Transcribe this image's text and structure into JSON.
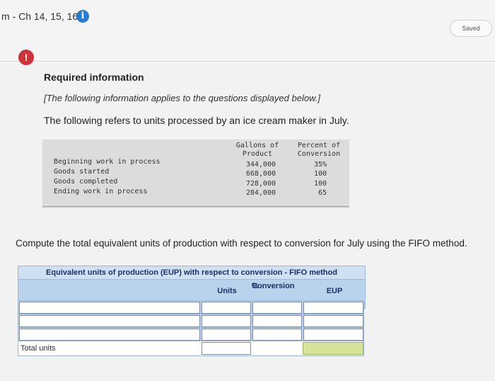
{
  "header": {
    "crumb": "m - Ch 14, 15, 16",
    "info_glyph": "i",
    "saved_label": "Saved"
  },
  "alert_glyph": "!",
  "required": {
    "title": "Required information",
    "note": "[The following information applies to the questions displayed below.]",
    "description": "The following refers to units processed by an ice cream maker in July."
  },
  "data_table": {
    "col1_header": [
      "Gallons of",
      "Product"
    ],
    "col2_header": [
      "Percent of",
      "Conversion"
    ],
    "rows": [
      {
        "label": "Beginning work in process",
        "gallons": "344,000",
        "percent": "35%"
      },
      {
        "label": "Goods started",
        "gallons": "668,000",
        "percent": "100"
      },
      {
        "label": "Goods completed",
        "gallons": "728,000",
        "percent": "100"
      },
      {
        "label": "Ending work in process",
        "gallons": "284,000",
        "percent": "65"
      }
    ]
  },
  "question": "Compute the total equivalent units of production with respect to conversion for July using the FIFO method.",
  "eup_table": {
    "title": "Equivalent units of production (EUP) with respect to conversion - FIFO method",
    "col_units": "Units",
    "col_pct_line1": "%",
    "col_pct_line2": "Conversion",
    "col_eup": "EUP",
    "total_label": "Total units"
  },
  "colors": {
    "accent_blue": "#2a7bd1",
    "alert_red": "#d0323b",
    "table_header_bg": "#b9d3ec",
    "total_highlight": "#d6e39a"
  }
}
